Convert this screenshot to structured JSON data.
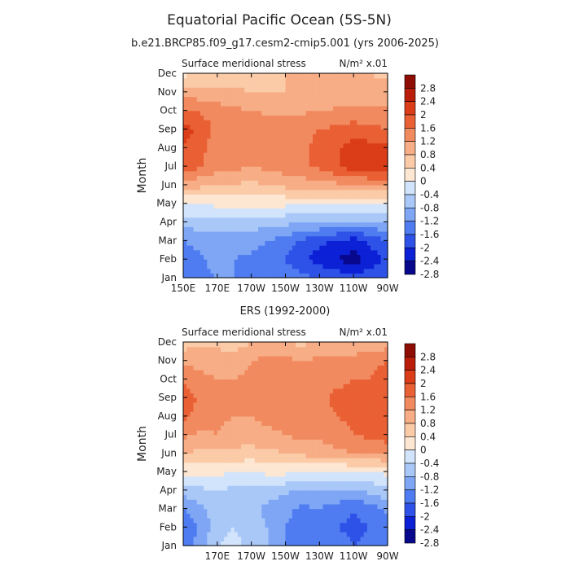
{
  "figure": {
    "title": "Equatorial Pacific Ocean (5S-5N)",
    "subtitle": "b.e21.BRCP85.f09_g17.cesm2-cmip5.001 (yrs 2006-2025)"
  },
  "colors": {
    "palette": [
      "#08088c",
      "#0c20d6",
      "#2e52e8",
      "#4f7cf0",
      "#7ea6f5",
      "#a9c8f8",
      "#d2e4fb",
      "#fde6d2",
      "#fbcba8",
      "#f7ad85",
      "#f28a60",
      "#ea6035",
      "#da3d18",
      "#ba1e0a",
      "#8e0d04"
    ]
  },
  "chart_data": [
    {
      "type": "heatmap",
      "title": "",
      "panel_label": "Surface meridional stress",
      "units_label": "N/m² x.01",
      "ylabel": "Month",
      "xlabel": "",
      "months": [
        "Jan",
        "Feb",
        "Mar",
        "Apr",
        "May",
        "Jun",
        "Jul",
        "Aug",
        "Sep",
        "Oct",
        "Nov",
        "Dec"
      ],
      "xticks": [
        "150E",
        "170E",
        "170W",
        "150W",
        "130W",
        "110W",
        "90W"
      ],
      "xlim": [
        "150E",
        "90W"
      ],
      "levels": [
        -2.8,
        -2.4,
        -2,
        -1.6,
        -1.2,
        -0.8,
        -0.4,
        0,
        0.4,
        0.8,
        1.2,
        1.6,
        2,
        2.4,
        2.8
      ],
      "colorbar_labels": [
        "2.8",
        "2.4",
        "2",
        "1.6",
        "1.2",
        "0.8",
        "0.4",
        "0",
        "-0.4",
        "-0.8",
        "-1.2",
        "-1.6",
        "-2",
        "-2.4",
        "-2.8"
      ],
      "x_lon": [
        150,
        170,
        190,
        210,
        230,
        250,
        270
      ],
      "values": [
        [
          -1.7,
          -1.6,
          -1.6,
          -1.8,
          -2.0,
          -2.2,
          -2.0
        ],
        [
          -1.8,
          -1.5,
          -1.7,
          -2.0,
          -2.6,
          -3.0,
          -2.3
        ],
        [
          -1.6,
          -1.4,
          -1.4,
          -1.8,
          -2.3,
          -2.6,
          -2.0
        ],
        [
          -1.0,
          -1.0,
          -1.0,
          -1.1,
          -1.2,
          -1.3,
          -1.2
        ],
        [
          -0.4,
          -0.3,
          -0.3,
          -0.3,
          -0.3,
          -0.3,
          -0.5
        ],
        [
          0.6,
          0.4,
          0.3,
          0.5,
          0.6,
          0.8,
          0.9
        ],
        [
          1.5,
          1.0,
          0.8,
          1.0,
          1.3,
          1.8,
          1.8
        ],
        [
          1.6,
          1.0,
          0.9,
          1.0,
          1.3,
          1.8,
          1.7
        ],
        [
          1.8,
          1.1,
          1.0,
          1.0,
          1.2,
          1.4,
          1.2
        ],
        [
          1.3,
          1.0,
          0.8,
          0.7,
          0.8,
          0.9,
          0.9
        ],
        [
          0.6,
          0.5,
          0.4,
          0.4,
          0.5,
          0.6,
          0.6
        ],
        [
          -0.1,
          0.1,
          0.3,
          0.4,
          0.5,
          0.5,
          0.3
        ]
      ]
    },
    {
      "type": "heatmap",
      "title": "ERS (1992-2000)",
      "panel_label": "Surface meridional stress",
      "units_label": "N/m² x.01",
      "ylabel": "Month",
      "xlabel": "",
      "months": [
        "Jan",
        "Feb",
        "Mar",
        "Apr",
        "May",
        "Jun",
        "Jul",
        "Aug",
        "Sep",
        "Oct",
        "Nov",
        "Dec"
      ],
      "xticks": [
        "170E",
        "170W",
        "150W",
        "130W",
        "110W",
        "90W"
      ],
      "xlim": [
        "150E",
        "90W"
      ],
      "levels": [
        -2.8,
        -2.4,
        -2,
        -1.6,
        -1.2,
        -0.8,
        -0.4,
        0,
        0.4,
        0.8,
        1.2,
        1.6,
        2,
        2.4,
        2.8
      ],
      "colorbar_labels": [
        "2.8",
        "2.4",
        "2",
        "1.6",
        "1.2",
        "0.8",
        "0.4",
        "0",
        "-0.4",
        "-0.8",
        "-1.2",
        "-1.6",
        "-2",
        "-2.4",
        "-2.8"
      ],
      "x_lon": [
        150,
        160,
        170,
        180,
        190,
        200,
        210,
        220,
        230,
        240,
        250,
        260,
        270
      ],
      "values": [
        [
          -1.8,
          -1.4,
          -0.8,
          -0.6,
          -1.0,
          -1.2,
          -1.6,
          -1.8,
          -1.6,
          -1.8,
          -2.0,
          -1.9,
          -1.6
        ],
        [
          -2.0,
          -1.5,
          -1.0,
          -0.8,
          -1.1,
          -1.2,
          -1.6,
          -1.8,
          -1.7,
          -2.0,
          -2.1,
          -2.0,
          -1.7
        ],
        [
          -1.6,
          -1.3,
          -1.0,
          -1.0,
          -1.1,
          -1.3,
          -1.5,
          -1.7,
          -1.6,
          -1.8,
          -2.0,
          -1.8,
          -1.5
        ],
        [
          -1.0,
          -0.9,
          -0.8,
          -0.9,
          -0.9,
          -1.0,
          -1.1,
          -1.3,
          -1.2,
          -1.2,
          -1.2,
          -1.1,
          -0.9
        ],
        [
          -0.3,
          -0.2,
          -0.3,
          -0.4,
          -0.4,
          -0.3,
          -0.3,
          -0.4,
          -0.5,
          -0.5,
          -0.4,
          -0.4,
          -0.3
        ],
        [
          0.4,
          0.3,
          0.2,
          0.3,
          0.2,
          0.3,
          0.4,
          0.5,
          0.6,
          0.7,
          0.8,
          0.8,
          0.9
        ],
        [
          0.9,
          0.7,
          0.8,
          0.6,
          0.7,
          0.7,
          0.8,
          0.9,
          0.9,
          1.0,
          1.2,
          1.3,
          1.4
        ],
        [
          1.3,
          1.0,
          0.9,
          0.8,
          0.8,
          0.9,
          1.0,
          1.0,
          1.0,
          1.2,
          1.3,
          1.4,
          1.5
        ],
        [
          1.5,
          1.1,
          1.0,
          0.9,
          0.9,
          1.0,
          1.1,
          1.2,
          1.1,
          1.3,
          1.3,
          1.4,
          1.6
        ],
        [
          1.1,
          0.9,
          0.8,
          0.8,
          0.9,
          1.0,
          1.0,
          1.0,
          1.0,
          1.1,
          1.2,
          1.2,
          1.4
        ],
        [
          0.7,
          0.7,
          0.6,
          0.6,
          0.8,
          0.9,
          0.9,
          0.8,
          0.9,
          1.0,
          1.0,
          1.1,
          1.2
        ],
        [
          0.2,
          0.3,
          0.3,
          0.2,
          0.4,
          0.5,
          0.4,
          0.3,
          0.5,
          0.4,
          0.4,
          0.5,
          0.6
        ]
      ]
    }
  ]
}
